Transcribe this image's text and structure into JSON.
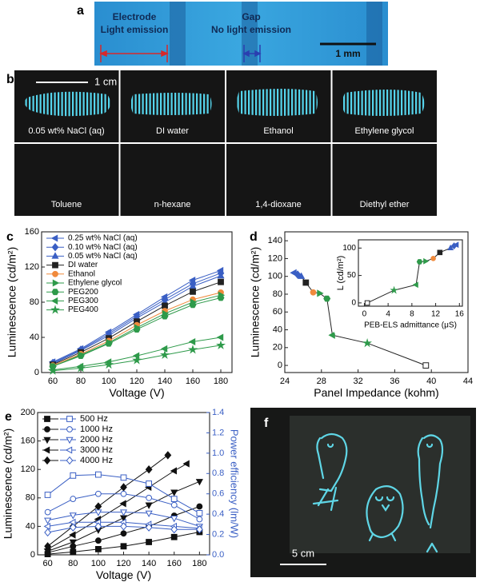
{
  "panels": {
    "a": {
      "label": "a",
      "electrode": "Electrode",
      "electrode_note": "Light emission",
      "gap": "Gap",
      "gap_note": "No light emission",
      "scale": "1 mm"
    },
    "b": {
      "label": "b",
      "scale": "1 cm",
      "samples": [
        "0.05 wt% NaCl (aq)",
        "DI water",
        "Ethanol",
        "Ethylene glycol",
        "Toluene",
        "n-hexane",
        "1,4-dioxane",
        "Diethyl ether"
      ]
    },
    "f": {
      "label": "f",
      "scale": "5 cm"
    }
  },
  "chart_data": [
    {
      "type": "line",
      "label": "c",
      "xlabel": "Voltage (V)",
      "ylabel": "Luminescence (cd/m²)",
      "x": [
        60,
        80,
        100,
        120,
        140,
        160,
        180
      ],
      "xlim": [
        52,
        188
      ],
      "xticks": [
        60,
        80,
        100,
        120,
        140,
        160,
        180
      ],
      "ylim": [
        0,
        160
      ],
      "yticks": [
        0,
        40,
        80,
        120,
        160
      ],
      "legend": "upper left",
      "series": [
        {
          "name": "0.25 wt% NaCl (aq)",
          "color": "#3a5fc4",
          "marker": "tri-left",
          "values": [
            12,
            27,
            46,
            66,
            86,
            105,
            116
          ]
        },
        {
          "name": "0.10 wt% NaCl (aq)",
          "color": "#3a5fc4",
          "marker": "diamond",
          "values": [
            11,
            26,
            44,
            64,
            83,
            101,
            113
          ]
        },
        {
          "name": "0.05 wt% NaCl (aq)",
          "color": "#3a5fc4",
          "marker": "tri-up",
          "values": [
            10,
            25,
            42,
            62,
            80,
            98,
            110
          ]
        },
        {
          "name": "DI water",
          "color": "#222222",
          "marker": "square",
          "values": [
            9,
            23,
            39,
            58,
            76,
            92,
            103
          ]
        },
        {
          "name": "Ethanol",
          "color": "#f08a3c",
          "marker": "circle",
          "values": [
            8,
            21,
            36,
            54,
            70,
            83,
            91
          ]
        },
        {
          "name": "Ethylene glycol",
          "color": "#2e9a4a",
          "marker": "tri-right",
          "values": [
            7,
            20,
            34,
            51,
            67,
            80,
            88
          ]
        },
        {
          "name": "PEG200",
          "color": "#2e9a4a",
          "marker": "hexagon",
          "values": [
            7,
            19,
            33,
            49,
            64,
            77,
            85
          ]
        },
        {
          "name": "PEG300",
          "color": "#2e9a4a",
          "marker": "tri-left",
          "values": [
            3,
            7,
            12,
            19,
            27,
            35,
            40
          ]
        },
        {
          "name": "PEG400",
          "color": "#2e9a4a",
          "marker": "star",
          "values": [
            2,
            5,
            9,
            14,
            20,
            26,
            31
          ]
        }
      ]
    },
    {
      "type": "line",
      "label": "d",
      "xlabel": "Panel Impedance (kohm)",
      "ylabel": "Luminescence (cd/m²)",
      "xlim": [
        24,
        44
      ],
      "xticks": [
        24,
        28,
        32,
        36,
        40,
        44
      ],
      "ylim": [
        -8,
        150
      ],
      "yticks": [
        0,
        20,
        40,
        60,
        80,
        100,
        120,
        140
      ],
      "series": [
        {
          "color": "#222222",
          "x": [
            25,
            25.4,
            25.8,
            26.3,
            27.1,
            27.8,
            28.6,
            29.2,
            33,
            39.4
          ],
          "values": [
            104,
            102,
            100,
            93,
            82,
            81,
            75,
            34,
            25,
            0
          ],
          "markers": [
            "tri-left",
            "diamond",
            "tri-up",
            "square",
            "circle",
            "tri-right",
            "hexagon",
            "tri-left",
            "star",
            "square-open"
          ],
          "point_colors": [
            "#3a5fc4",
            "#3a5fc4",
            "#3a5fc4",
            "#222222",
            "#f08a3c",
            "#2e9a4a",
            "#2e9a4a",
            "#2e9a4a",
            "#2e9a4a",
            "#222222"
          ]
        }
      ]
    },
    {
      "type": "line",
      "xlabel": "PEB-ELS admittance (μS)",
      "ylabel": "L (cd/m²)",
      "xlim": [
        -1,
        16.5
      ],
      "xticks": [
        0,
        4,
        8,
        12,
        16
      ],
      "ylim": [
        -6,
        115
      ],
      "yticks": [
        0,
        50,
        100
      ],
      "series": [
        {
          "color": "#222222",
          "x": [
            0.5,
            5,
            8.7,
            9.3,
            10.3,
            11.6,
            12.7,
            14.5,
            15.1,
            15.5
          ],
          "values": [
            0,
            23,
            33,
            75,
            76,
            81,
            92,
            100,
            104,
            106
          ],
          "markers": [
            "square-open",
            "star",
            "tri-left",
            "hexagon",
            "tri-right",
            "circle",
            "square",
            "tri-up",
            "diamond",
            "tri-left"
          ],
          "point_colors": [
            "#222222",
            "#2e9a4a",
            "#2e9a4a",
            "#2e9a4a",
            "#2e9a4a",
            "#f08a3c",
            "#222222",
            "#3a5fc4",
            "#3a5fc4",
            "#3a5fc4"
          ]
        }
      ]
    },
    {
      "type": "line",
      "label": "e",
      "xlabel": "Voltage (V)",
      "ylabel": "Luminescence (cd/m²)",
      "y2label": "Power efficiency (lm/W)",
      "xlim": [
        52,
        188
      ],
      "xticks": [
        60,
        80,
        100,
        120,
        140,
        160,
        180
      ],
      "ylim": [
        0,
        200
      ],
      "yticks": [
        0,
        40,
        80,
        120,
        160,
        200
      ],
      "y2lim": [
        0,
        1.4
      ],
      "y2ticks": [
        {
          "value": 0,
          "label": "0.0"
        },
        0.2,
        0.4,
        0.6,
        0.8,
        {
          "value": 1,
          "label": "1.0"
        },
        1.2,
        1.4
      ],
      "legend": "upper left",
      "series": [
        {
          "name": "500 Hz",
          "color": "#111111",
          "marker": "square",
          "x": [
            60,
            80,
            100,
            120,
            140,
            160,
            180
          ],
          "values": [
            1,
            4,
            8,
            12,
            18,
            25,
            32
          ]
        },
        {
          "name": "1000 Hz",
          "color": "#111111",
          "marker": "circle",
          "x": [
            60,
            80,
            100,
            120,
            140,
            160,
            180
          ],
          "values": [
            3,
            12,
            20,
            30,
            40,
            55,
            68
          ]
        },
        {
          "name": "2000 Hz",
          "color": "#111111",
          "marker": "tri-down",
          "x": [
            60,
            80,
            100,
            120,
            140,
            160,
            180
          ],
          "values": [
            5,
            18,
            35,
            52,
            70,
            88,
            103
          ]
        },
        {
          "name": "3000 Hz",
          "color": "#111111",
          "marker": "tri-left",
          "x": [
            60,
            80,
            100,
            120,
            140,
            160,
            170
          ],
          "values": [
            8,
            28,
            50,
            72,
            95,
            118,
            128
          ]
        },
        {
          "name": "4000 Hz",
          "color": "#111111",
          "marker": "diamond",
          "x": [
            60,
            80,
            100,
            120,
            140,
            155
          ],
          "values": [
            12,
            40,
            68,
            95,
            120,
            140
          ]
        },
        {
          "axis": "y2",
          "color": "#3a5fc4",
          "marker": "square-open",
          "x": [
            60,
            80,
            100,
            120,
            140,
            160,
            180
          ],
          "values": [
            0.59,
            0.78,
            0.79,
            0.76,
            0.7,
            0.55,
            0.41
          ]
        },
        {
          "axis": "y2",
          "color": "#3a5fc4",
          "marker": "circle-open",
          "x": [
            60,
            80,
            100,
            120,
            140,
            160,
            180
          ],
          "values": [
            0.42,
            0.55,
            0.6,
            0.6,
            0.56,
            0.49,
            0.35
          ]
        },
        {
          "axis": "y2",
          "color": "#3a5fc4",
          "marker": "tri-down-open",
          "x": [
            60,
            80,
            100,
            120,
            140,
            160,
            180
          ],
          "values": [
            0.34,
            0.39,
            0.42,
            0.42,
            0.41,
            0.36,
            0.28
          ]
        },
        {
          "axis": "y2",
          "color": "#3a5fc4",
          "marker": "tri-left-open",
          "x": [
            60,
            80,
            100,
            120,
            140,
            160,
            180
          ],
          "values": [
            0.28,
            0.32,
            0.32,
            0.32,
            0.3,
            0.28,
            0.26
          ]
        },
        {
          "axis": "y2",
          "color": "#3a5fc4",
          "marker": "diamond-open",
          "x": [
            60,
            80,
            100,
            120,
            140,
            160,
            180
          ],
          "values": [
            0.22,
            0.27,
            0.28,
            0.28,
            0.27,
            0.25,
            0.25
          ]
        }
      ]
    }
  ]
}
